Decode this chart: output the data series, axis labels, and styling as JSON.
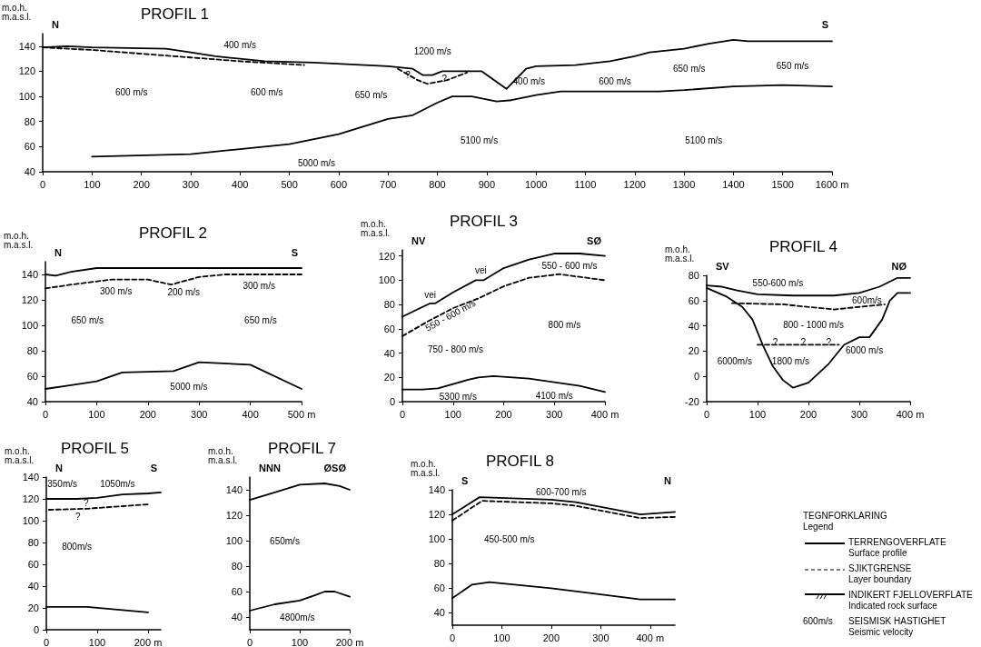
{
  "chart_data": [
    {
      "type": "line",
      "title": "PROFIL 1",
      "ylabel": "m.o.h.\nm.a.s.l.",
      "xlim": [
        0,
        1600
      ],
      "ylim": [
        40,
        150
      ],
      "xticks": [
        0,
        100,
        200,
        300,
        400,
        500,
        600,
        700,
        800,
        900,
        1000,
        1100,
        1200,
        1300,
        1400,
        1500,
        {
          "value": 1600,
          "label": "1600 m"
        }
      ],
      "yticks": [
        40,
        60,
        80,
        100,
        120,
        140
      ],
      "series": [
        {
          "color": "#000000",
          "line_style": "solid",
          "x": [
            0,
            50,
            100,
            250,
            300,
            350,
            450,
            550,
            700,
            750,
            770,
            790,
            810,
            850,
            890,
            940,
            980,
            1000,
            1080,
            1150,
            1200,
            1230,
            1300,
            1350,
            1400,
            1430,
            1600
          ],
          "values": [
            139,
            140,
            139,
            138,
            135,
            132,
            128,
            127,
            124,
            122,
            117,
            117,
            120,
            120,
            120,
            106,
            122,
            124,
            125,
            128,
            132,
            135,
            138,
            142,
            145,
            144,
            144
          ]
        },
        {
          "color": "#000000",
          "line_style": "dashed",
          "x": [
            0,
            100,
            200,
            300,
            400,
            530
          ],
          "values": [
            139,
            137,
            134,
            131,
            128,
            125
          ]
        },
        {
          "color": "#000000",
          "line_style": "dashed",
          "x": [
            720,
            760,
            780,
            820,
            860
          ],
          "values": [
            122,
            113,
            110,
            113,
            119
          ]
        },
        {
          "color": "#000000",
          "line_style": "solid",
          "x": [
            100,
            300,
            400,
            500,
            600,
            700,
            750,
            800,
            830,
            870,
            920,
            950,
            1000,
            1050,
            1150,
            1250,
            1300,
            1400,
            1500,
            1600
          ],
          "values": [
            52,
            54,
            58,
            62,
            70,
            82,
            85,
            95,
            100,
            100,
            96,
            97,
            101,
            104,
            104,
            104,
            105,
            108,
            109,
            108
          ]
        }
      ],
      "annotations": [
        "N",
        "S",
        "400 m/s",
        "1200 m/s",
        "?",
        "?",
        "600 m/s",
        "600 m/s",
        "650 m/s",
        "400 m/s",
        "600 m/s",
        "650 m/s",
        "650 m/s",
        "5100 m/s",
        "5100 m/s",
        "5000 m/s"
      ]
    },
    {
      "type": "line",
      "title": "PROFIL 2",
      "ylabel": "m.o.h.\nm.a.s.l.",
      "xlim": [
        0,
        500
      ],
      "ylim": [
        40,
        150
      ],
      "xticks": [
        0,
        100,
        200,
        300,
        400,
        {
          "value": 500,
          "label": "500 m"
        }
      ],
      "yticks": [
        40,
        60,
        80,
        100,
        120,
        140
      ],
      "series": [
        {
          "color": "#000000",
          "line_style": "solid",
          "x": [
            0,
            20,
            50,
            100,
            500
          ],
          "values": [
            140,
            139,
            142,
            145,
            145
          ]
        },
        {
          "color": "#000000",
          "line_style": "dashed",
          "x": [
            0,
            50,
            130,
            200,
            245,
            300,
            350,
            500
          ],
          "values": [
            129,
            132,
            136,
            136,
            132,
            138,
            140,
            140
          ]
        },
        {
          "color": "#000000",
          "line_style": "solid",
          "x": [
            0,
            50,
            100,
            150,
            250,
            300,
            400,
            500
          ],
          "values": [
            50,
            53,
            56,
            63,
            64,
            71,
            69,
            50
          ]
        }
      ],
      "annotations": [
        "N",
        "S",
        "300 m/s",
        "200 m/s",
        "300 m/s",
        "650 m/s",
        "650 m/s",
        "5000 m/s"
      ]
    },
    {
      "type": "line",
      "title": "PROFIL 3",
      "ylabel": "m.o.h.\nm.a.s.l.",
      "xlim": [
        0,
        400
      ],
      "ylim": [
        0,
        125
      ],
      "xticks": [
        0,
        100,
        200,
        300,
        {
          "value": 400,
          "label": "400 m"
        }
      ],
      "yticks": [
        0,
        20,
        40,
        60,
        80,
        100,
        120
      ],
      "series": [
        {
          "color": "#000000",
          "line_style": "solid",
          "x": [
            0,
            25,
            55,
            65,
            100,
            145,
            160,
            200,
            250,
            300,
            350,
            400
          ],
          "values": [
            70,
            75,
            81,
            81,
            90,
            100,
            100,
            110,
            117,
            122,
            122,
            120
          ]
        },
        {
          "color": "#000000",
          "line_style": "dashed",
          "x": [
            0,
            50,
            100,
            150,
            200,
            250,
            310,
            400
          ],
          "values": [
            54,
            66,
            77,
            85,
            95,
            102,
            105,
            100
          ]
        },
        {
          "color": "#000000",
          "line_style": "solid",
          "x": [
            0,
            40,
            70,
            130,
            150,
            180,
            250,
            300,
            350,
            400
          ],
          "values": [
            10,
            10,
            11,
            18,
            20,
            21,
            19,
            16,
            13,
            8
          ]
        }
      ],
      "annotations": [
        "NV",
        "SØ",
        "vei",
        "vei",
        "550 - 600 m/s",
        "550 - 600 m/s",
        "750 - 800 m/s",
        "800 m/s",
        "5300 m/s",
        "4100 m/s"
      ]
    },
    {
      "type": "line",
      "title": "PROFIL 4",
      "ylabel": "m.o.h.\nm.a.s.l.",
      "xlim": [
        0,
        400
      ],
      "ylim": [
        -20,
        80
      ],
      "xticks": [
        0,
        100,
        200,
        300,
        {
          "value": 400,
          "label": "400 m"
        }
      ],
      "yticks": [
        -20,
        0,
        20,
        40,
        60,
        80
      ],
      "series": [
        {
          "color": "#000000",
          "line_style": "solid",
          "x": [
            0,
            30,
            60,
            100,
            170,
            250,
            300,
            340,
            375,
            400
          ],
          "values": [
            72,
            71,
            68,
            65,
            64,
            64,
            66,
            71,
            78,
            78
          ]
        },
        {
          "color": "#000000",
          "line_style": "dashed",
          "x": [
            50,
            150,
            250,
            300,
            350
          ],
          "values": [
            58,
            57,
            53,
            55,
            57
          ]
        },
        {
          "color": "#000000",
          "line_style": "dashed",
          "x": [
            100,
            260
          ],
          "values": [
            25,
            25
          ]
        },
        {
          "color": "#000000",
          "line_style": "solid",
          "x": [
            0,
            40,
            70,
            90,
            110,
            130,
            150,
            170,
            200,
            240,
            270,
            300,
            320,
            345,
            360,
            375,
            400
          ],
          "values": [
            70,
            63,
            55,
            45,
            25,
            8,
            -3,
            -9,
            -5,
            10,
            25,
            31,
            31,
            45,
            60,
            66,
            66
          ]
        }
      ],
      "annotations": [
        "SV",
        "NØ",
        "550-600 m/s",
        "600m/s",
        "800 - 1000 m/s",
        "?",
        "?",
        "?",
        "6000m/s",
        "1800 m/s",
        "6000 m/s"
      ]
    },
    {
      "type": "line",
      "title": "PROFIL 5",
      "ylabel": "m.o.h.\nm.a.s.l.",
      "xlim": [
        0,
        225
      ],
      "ylim": [
        0,
        140
      ],
      "xticks": [
        0,
        100,
        {
          "value": 200,
          "label": "200 m"
        }
      ],
      "yticks": [
        0,
        20,
        40,
        60,
        80,
        100,
        120,
        140
      ],
      "series": [
        {
          "color": "#000000",
          "line_style": "solid",
          "x": [
            0,
            60,
            100,
            150,
            200,
            225
          ],
          "values": [
            120,
            120,
            121,
            124,
            125,
            126
          ]
        },
        {
          "color": "#000000",
          "line_style": "dashed",
          "x": [
            5,
            80,
            200
          ],
          "values": [
            110,
            111,
            115
          ]
        },
        {
          "color": "#000000",
          "line_style": "solid",
          "x": [
            0,
            80,
            150,
            200
          ],
          "values": [
            21,
            21,
            18,
            16
          ]
        }
      ],
      "annotations": [
        "N",
        "S",
        "350m/s",
        "1050m/s",
        "?",
        "?",
        "800m/s"
      ]
    },
    {
      "type": "line",
      "title": "PROFIL 7",
      "ylabel": "m.o.h.\nm.a.s.l.",
      "xlim": [
        0,
        200
      ],
      "ylim": [
        30,
        150
      ],
      "xticks": [
        0,
        100,
        {
          "value": 200,
          "label": "200 m"
        }
      ],
      "yticks": [
        40,
        60,
        80,
        100,
        120,
        140
      ],
      "series": [
        {
          "color": "#000000",
          "line_style": "solid",
          "x": [
            0,
            50,
            100,
            150,
            180,
            200
          ],
          "values": [
            132,
            138,
            144,
            145,
            143,
            140
          ]
        },
        {
          "color": "#000000",
          "line_style": "solid",
          "x": [
            0,
            50,
            100,
            130,
            150,
            170,
            200
          ],
          "values": [
            45,
            50,
            53,
            57,
            60,
            60,
            56
          ]
        }
      ],
      "annotations": [
        "NNN",
        "ØSØ",
        "650m/s",
        "4800m/s"
      ]
    },
    {
      "type": "line",
      "title": "PROFIL 8",
      "ylabel": "m.o.h.\nm.a.s.l.",
      "xlim": [
        0,
        450
      ],
      "ylim": [
        30,
        140
      ],
      "xticks": [
        0,
        100,
        200,
        300,
        {
          "value": 400,
          "label": "400 m"
        }
      ],
      "yticks": [
        40,
        60,
        80,
        100,
        120,
        140
      ],
      "series": [
        {
          "color": "#000000",
          "line_style": "solid",
          "x": [
            0,
            55,
            200,
            250,
            380,
            450
          ],
          "values": [
            120,
            134,
            132,
            130,
            120,
            122
          ]
        },
        {
          "color": "#000000",
          "line_style": "dashed",
          "x": [
            0,
            60,
            200,
            250,
            380,
            450
          ],
          "values": [
            115,
            131,
            129,
            127,
            117,
            118
          ]
        },
        {
          "color": "#000000",
          "line_style": "solid",
          "x": [
            0,
            40,
            75,
            200,
            300,
            380,
            450
          ],
          "values": [
            52,
            63,
            65,
            60,
            55,
            51,
            51
          ]
        }
      ],
      "annotations": [
        "S",
        "N",
        "600-700 m/s",
        "450-500 m/s"
      ]
    },
    {
      "type": "other",
      "title": "TEGNFORKLARING",
      "subtitle": "Legend",
      "annotations": [
        "TERRENGOVERFLATE",
        "Surface profile",
        "SJIKTGRENSE",
        "Layer boundary",
        "INDIKERT FJELLOVERFLATE",
        "Indicated rock surface",
        "600m/s",
        "SEISMISK HASTIGHET",
        "Seismic velocity"
      ]
    }
  ]
}
